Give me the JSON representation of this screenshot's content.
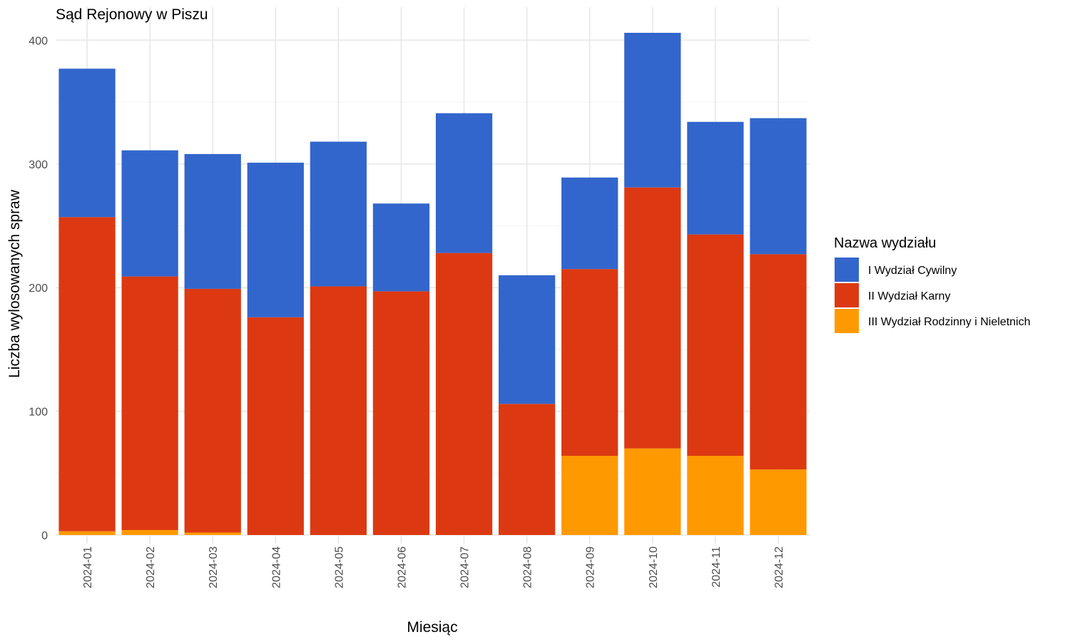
{
  "chart_data": {
    "type": "bar",
    "stacked": true,
    "title": "Sąd Rejonowy w Piszu",
    "xlabel": "Miesiąc",
    "ylabel": "Liczba wylosowanych spraw",
    "ylim": [
      0,
      420
    ],
    "yticks": [
      0,
      100,
      200,
      300,
      400
    ],
    "grid": true,
    "legend_position": "right",
    "legend_title": "Nazwa wydziału",
    "categories": [
      "2024-01",
      "2024-02",
      "2024-03",
      "2024-04",
      "2024-05",
      "2024-06",
      "2024-07",
      "2024-08",
      "2024-09",
      "2024-10",
      "2024-11",
      "2024-12"
    ],
    "series": [
      {
        "name": "I Wydział Cywilny",
        "color": "#3366cc",
        "values": [
          120,
          102,
          109,
          125,
          117,
          71,
          113,
          104,
          74,
          125,
          91,
          110
        ]
      },
      {
        "name": "II Wydział Karny",
        "color": "#dc3912",
        "values": [
          254,
          205,
          197,
          176,
          201,
          197,
          228,
          106,
          151,
          211,
          179,
          174
        ]
      },
      {
        "name": "III Wydział Rodzinny i Nieletnich",
        "color": "#ff9900",
        "values": [
          3,
          4,
          2,
          0,
          0,
          0,
          0,
          0,
          64,
          70,
          64,
          53
        ]
      }
    ]
  }
}
